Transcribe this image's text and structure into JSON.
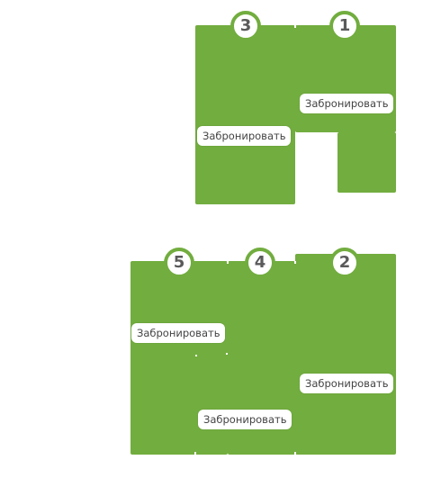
{
  "colors": {
    "room_fill": "#72ad3f",
    "badge_text": "#5a5a5a",
    "button_bg": "#ffffff",
    "button_text": "#444444"
  },
  "rooms": [
    {
      "number": "1",
      "action_label": "Забронировать"
    },
    {
      "number": "2",
      "action_label": "Забронировать"
    },
    {
      "number": "3",
      "action_label": "Забронировать"
    },
    {
      "number": "4",
      "action_label": "Забронировать"
    },
    {
      "number": "5",
      "action_label": "Забронировать"
    }
  ]
}
